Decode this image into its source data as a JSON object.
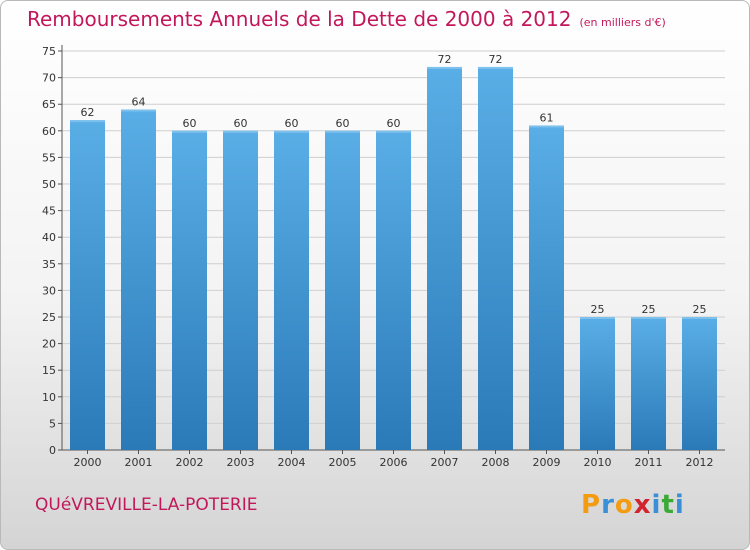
{
  "title": "Remboursements Annuels de la Dette de 2000 à 2012",
  "subtitle": "(en milliers d'€)",
  "city": "QUéVREVILLE-LA-POTERIE",
  "logo": {
    "letters": [
      "P",
      "r",
      "o",
      "x",
      "i",
      "t",
      "i"
    ],
    "colors": [
      "#f39c12",
      "#3b8fd6",
      "#f39c12",
      "#d2242f",
      "#3b8fd6",
      "#3aaa35",
      "#3b8fd6"
    ]
  },
  "colors": {
    "title": "#c2185b",
    "bar_top": "#5aaee6",
    "bar_bottom": "#2a7ab8"
  },
  "chart_data": {
    "type": "bar",
    "categories": [
      "2000",
      "2001",
      "2002",
      "2003",
      "2004",
      "2005",
      "2006",
      "2007",
      "2008",
      "2009",
      "2010",
      "2011",
      "2012"
    ],
    "values": [
      62,
      64,
      60,
      60,
      60,
      60,
      60,
      72,
      72,
      61,
      25,
      25,
      25
    ],
    "ylim": [
      0,
      75
    ],
    "yticks": [
      0,
      5,
      10,
      15,
      20,
      25,
      30,
      35,
      40,
      45,
      50,
      55,
      60,
      65,
      70,
      75
    ],
    "grid": true,
    "show_data_labels": true
  }
}
